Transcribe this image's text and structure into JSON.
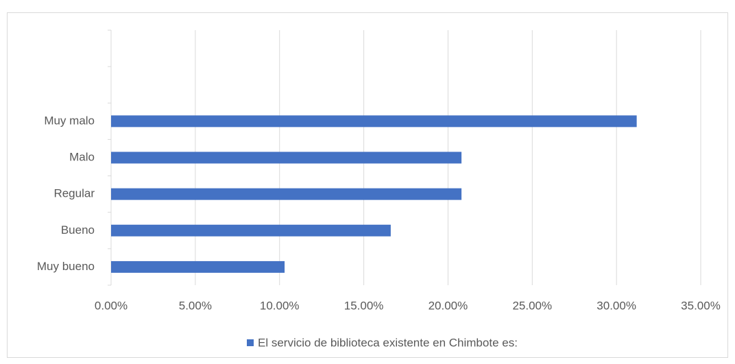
{
  "chart_data": {
    "type": "bar",
    "orientation": "horizontal",
    "categories": [
      "Muy bueno",
      "Bueno",
      "Regular",
      "Malo",
      "Muy malo",
      null,
      null
    ],
    "series": [
      {
        "name": "El servicio de biblioteca existente en Chimbote es:",
        "color": "#4472c4",
        "values": [
          10.3,
          16.6,
          20.8,
          20.8,
          31.2,
          null,
          null
        ]
      }
    ],
    "xlim": [
      0,
      35
    ],
    "xticks": [
      {
        "value": 0,
        "label": "0.00%"
      },
      {
        "value": 5,
        "label": "5.00%"
      },
      {
        "value": 10,
        "label": "10.00%"
      },
      {
        "value": 15,
        "label": "15.00%"
      },
      {
        "value": 20,
        "label": "20.00%"
      },
      {
        "value": 25,
        "label": "25.00%"
      },
      {
        "value": 30,
        "label": "30.00%"
      },
      {
        "value": 35,
        "label": "35.00%"
      }
    ],
    "grid": true,
    "legend": "bottom"
  }
}
